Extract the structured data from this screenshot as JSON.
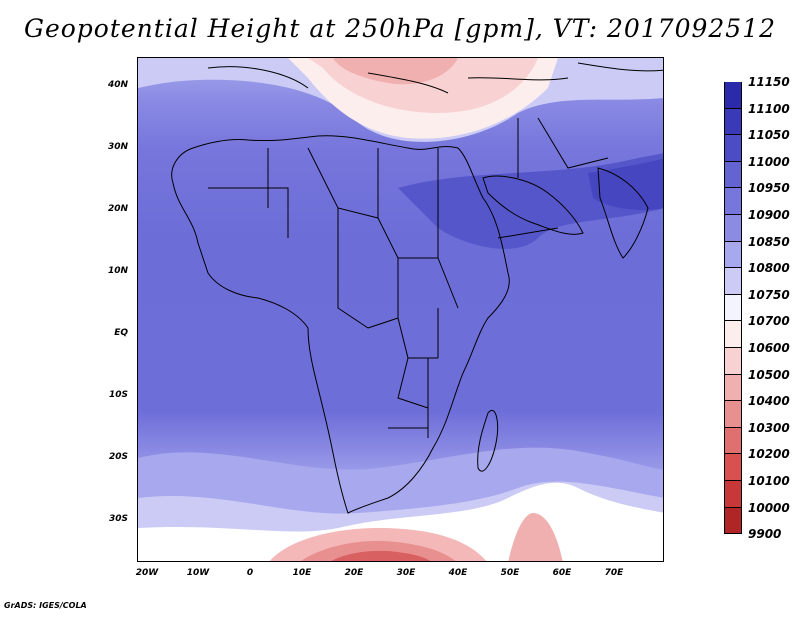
{
  "title": "Geopotential Height at 250hPa [gpm], VT: 2017092512",
  "footer": "GrADS: IGES/COLA",
  "map": {
    "lat_labels": [
      "40N",
      "30N",
      "20N",
      "10N",
      "EQ",
      "10S",
      "20S",
      "30S"
    ],
    "lon_labels": [
      "20W",
      "10W",
      "0",
      "10E",
      "20E",
      "30E",
      "40E",
      "50E",
      "60E",
      "70E"
    ]
  },
  "colorbar": {
    "labels": [
      "11150",
      "11100",
      "11050",
      "11000",
      "10950",
      "10900",
      "10850",
      "10800",
      "10750",
      "10700",
      "10600",
      "10500",
      "10400",
      "10300",
      "10200",
      "10100",
      "10000",
      "9900"
    ],
    "colors": [
      "#1e1e9a",
      "#2a2aaa",
      "#3a3ab8",
      "#4c4cc4",
      "#6363d2",
      "#7676dc",
      "#8b8be4",
      "#a8a8ee",
      "#cbcbf6",
      "#f4f4ff",
      "#fdeeee",
      "#f8d2d2",
      "#f0b0b0",
      "#e89090",
      "#e07070",
      "#d85050",
      "#c83838",
      "#b02626",
      "#9a1616"
    ]
  }
}
